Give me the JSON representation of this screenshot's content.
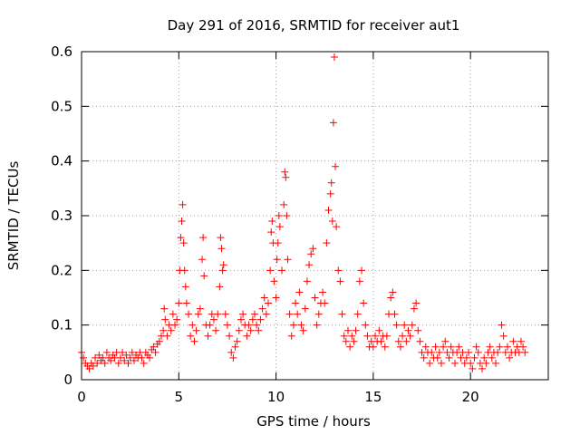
{
  "chart_data": {
    "type": "scatter",
    "title": "Day 291 of 2016, SRMTID for receiver aut1",
    "xlabel": "GPS time / hours",
    "ylabel": "SRMTID / TECUs",
    "xlim": [
      0,
      24
    ],
    "ylim": [
      0,
      0.6
    ],
    "xticks": [
      0,
      5,
      10,
      15,
      20
    ],
    "yticks": [
      0,
      0.1,
      0.2,
      0.3,
      0.4,
      0.5,
      0.6
    ],
    "xtick_labels": [
      "0",
      "5",
      "10",
      "15",
      "20"
    ],
    "ytick_labels": [
      "0",
      "0.1",
      "0.2",
      "0.3",
      "0.4",
      "0.5",
      "0.6"
    ],
    "grid": true,
    "marker": "+",
    "marker_color": "#ff0000",
    "series": [
      {
        "name": "aut1",
        "points": [
          [
            0.0,
            0.05
          ],
          [
            0.1,
            0.04
          ],
          [
            0.2,
            0.03
          ],
          [
            0.3,
            0.025
          ],
          [
            0.4,
            0.02
          ],
          [
            0.5,
            0.03
          ],
          [
            0.6,
            0.025
          ],
          [
            0.7,
            0.04
          ],
          [
            0.8,
            0.03
          ],
          [
            0.9,
            0.045
          ],
          [
            1.0,
            0.035
          ],
          [
            1.1,
            0.04
          ],
          [
            1.2,
            0.03
          ],
          [
            1.3,
            0.05
          ],
          [
            1.4,
            0.04
          ],
          [
            1.5,
            0.035
          ],
          [
            1.6,
            0.045
          ],
          [
            1.7,
            0.04
          ],
          [
            1.8,
            0.05
          ],
          [
            1.9,
            0.03
          ],
          [
            2.0,
            0.04
          ],
          [
            2.1,
            0.05
          ],
          [
            2.2,
            0.035
          ],
          [
            2.3,
            0.045
          ],
          [
            2.4,
            0.03
          ],
          [
            2.5,
            0.04
          ],
          [
            2.6,
            0.05
          ],
          [
            2.7,
            0.035
          ],
          [
            2.8,
            0.045
          ],
          [
            2.9,
            0.04
          ],
          [
            3.0,
            0.05
          ],
          [
            3.1,
            0.04
          ],
          [
            3.2,
            0.03
          ],
          [
            3.3,
            0.05
          ],
          [
            3.4,
            0.045
          ],
          [
            3.5,
            0.04
          ],
          [
            3.6,
            0.055
          ],
          [
            3.7,
            0.06
          ],
          [
            3.8,
            0.05
          ],
          [
            3.9,
            0.065
          ],
          [
            4.0,
            0.07
          ],
          [
            4.1,
            0.08
          ],
          [
            4.2,
            0.09
          ],
          [
            4.25,
            0.13
          ],
          [
            4.3,
            0.11
          ],
          [
            4.4,
            0.08
          ],
          [
            4.5,
            0.1
          ],
          [
            4.6,
            0.09
          ],
          [
            4.7,
            0.12
          ],
          [
            4.8,
            0.1
          ],
          [
            4.9,
            0.11
          ],
          [
            5.0,
            0.14
          ],
          [
            5.05,
            0.2
          ],
          [
            5.1,
            0.26
          ],
          [
            5.15,
            0.29
          ],
          [
            5.2,
            0.32
          ],
          [
            5.25,
            0.25
          ],
          [
            5.3,
            0.2
          ],
          [
            5.35,
            0.17
          ],
          [
            5.4,
            0.14
          ],
          [
            5.5,
            0.12
          ],
          [
            5.6,
            0.08
          ],
          [
            5.7,
            0.1
          ],
          [
            5.8,
            0.07
          ],
          [
            5.9,
            0.09
          ],
          [
            6.0,
            0.12
          ],
          [
            6.1,
            0.13
          ],
          [
            6.2,
            0.22
          ],
          [
            6.25,
            0.26
          ],
          [
            6.3,
            0.19
          ],
          [
            6.4,
            0.1
          ],
          [
            6.5,
            0.08
          ],
          [
            6.6,
            0.1
          ],
          [
            6.7,
            0.12
          ],
          [
            6.8,
            0.11
          ],
          [
            6.9,
            0.09
          ],
          [
            7.0,
            0.12
          ],
          [
            7.1,
            0.17
          ],
          [
            7.15,
            0.26
          ],
          [
            7.2,
            0.24
          ],
          [
            7.25,
            0.2
          ],
          [
            7.3,
            0.21
          ],
          [
            7.4,
            0.12
          ],
          [
            7.5,
            0.1
          ],
          [
            7.6,
            0.08
          ],
          [
            7.7,
            0.05
          ],
          [
            7.8,
            0.04
          ],
          [
            7.9,
            0.06
          ],
          [
            8.0,
            0.07
          ],
          [
            8.1,
            0.09
          ],
          [
            8.2,
            0.11
          ],
          [
            8.3,
            0.12
          ],
          [
            8.4,
            0.1
          ],
          [
            8.5,
            0.08
          ],
          [
            8.6,
            0.1
          ],
          [
            8.7,
            0.09
          ],
          [
            8.8,
            0.11
          ],
          [
            8.9,
            0.12
          ],
          [
            9.0,
            0.1
          ],
          [
            9.1,
            0.09
          ],
          [
            9.2,
            0.11
          ],
          [
            9.3,
            0.13
          ],
          [
            9.4,
            0.15
          ],
          [
            9.5,
            0.12
          ],
          [
            9.6,
            0.14
          ],
          [
            9.7,
            0.2
          ],
          [
            9.75,
            0.27
          ],
          [
            9.8,
            0.29
          ],
          [
            9.85,
            0.25
          ],
          [
            9.9,
            0.18
          ],
          [
            10.0,
            0.15
          ],
          [
            10.05,
            0.22
          ],
          [
            10.1,
            0.25
          ],
          [
            10.15,
            0.3
          ],
          [
            10.2,
            0.28
          ],
          [
            10.3,
            0.2
          ],
          [
            10.4,
            0.32
          ],
          [
            10.45,
            0.38
          ],
          [
            10.5,
            0.37
          ],
          [
            10.55,
            0.3
          ],
          [
            10.6,
            0.22
          ],
          [
            10.7,
            0.12
          ],
          [
            10.8,
            0.08
          ],
          [
            10.9,
            0.1
          ],
          [
            11.0,
            0.14
          ],
          [
            11.1,
            0.12
          ],
          [
            11.2,
            0.16
          ],
          [
            11.3,
            0.1
          ],
          [
            11.4,
            0.09
          ],
          [
            11.5,
            0.13
          ],
          [
            11.6,
            0.18
          ],
          [
            11.7,
            0.21
          ],
          [
            11.8,
            0.23
          ],
          [
            11.9,
            0.24
          ],
          [
            12.0,
            0.15
          ],
          [
            12.1,
            0.1
          ],
          [
            12.2,
            0.12
          ],
          [
            12.3,
            0.14
          ],
          [
            12.4,
            0.16
          ],
          [
            12.5,
            0.14
          ],
          [
            12.6,
            0.25
          ],
          [
            12.7,
            0.31
          ],
          [
            12.8,
            0.34
          ],
          [
            12.85,
            0.36
          ],
          [
            12.9,
            0.29
          ],
          [
            12.95,
            0.47
          ],
          [
            13.0,
            0.59
          ],
          [
            13.05,
            0.39
          ],
          [
            13.1,
            0.28
          ],
          [
            13.2,
            0.2
          ],
          [
            13.3,
            0.18
          ],
          [
            13.4,
            0.12
          ],
          [
            13.5,
            0.08
          ],
          [
            13.6,
            0.07
          ],
          [
            13.7,
            0.09
          ],
          [
            13.8,
            0.06
          ],
          [
            13.9,
            0.08
          ],
          [
            14.0,
            0.07
          ],
          [
            14.1,
            0.09
          ],
          [
            14.2,
            0.12
          ],
          [
            14.3,
            0.18
          ],
          [
            14.4,
            0.2
          ],
          [
            14.5,
            0.14
          ],
          [
            14.6,
            0.1
          ],
          [
            14.7,
            0.08
          ],
          [
            14.8,
            0.06
          ],
          [
            14.9,
            0.07
          ],
          [
            15.0,
            0.06
          ],
          [
            15.1,
            0.08
          ],
          [
            15.2,
            0.07
          ],
          [
            15.3,
            0.09
          ],
          [
            15.4,
            0.07
          ],
          [
            15.5,
            0.08
          ],
          [
            15.6,
            0.06
          ],
          [
            15.7,
            0.08
          ],
          [
            15.8,
            0.12
          ],
          [
            15.9,
            0.15
          ],
          [
            16.0,
            0.16
          ],
          [
            16.1,
            0.12
          ],
          [
            16.2,
            0.1
          ],
          [
            16.3,
            0.07
          ],
          [
            16.4,
            0.06
          ],
          [
            16.5,
            0.08
          ],
          [
            16.6,
            0.1
          ],
          [
            16.7,
            0.07
          ],
          [
            16.8,
            0.09
          ],
          [
            16.9,
            0.08
          ],
          [
            17.0,
            0.1
          ],
          [
            17.1,
            0.13
          ],
          [
            17.2,
            0.14
          ],
          [
            17.3,
            0.09
          ],
          [
            17.4,
            0.07
          ],
          [
            17.5,
            0.05
          ],
          [
            17.6,
            0.04
          ],
          [
            17.7,
            0.06
          ],
          [
            17.8,
            0.05
          ],
          [
            17.9,
            0.03
          ],
          [
            18.0,
            0.05
          ],
          [
            18.1,
            0.04
          ],
          [
            18.2,
            0.06
          ],
          [
            18.3,
            0.04
          ],
          [
            18.4,
            0.05
          ],
          [
            18.5,
            0.03
          ],
          [
            18.6,
            0.06
          ],
          [
            18.7,
            0.07
          ],
          [
            18.8,
            0.05
          ],
          [
            18.9,
            0.04
          ],
          [
            19.0,
            0.06
          ],
          [
            19.1,
            0.05
          ],
          [
            19.2,
            0.03
          ],
          [
            19.3,
            0.05
          ],
          [
            19.4,
            0.06
          ],
          [
            19.5,
            0.04
          ],
          [
            19.6,
            0.05
          ],
          [
            19.7,
            0.03
          ],
          [
            19.8,
            0.04
          ],
          [
            19.9,
            0.05
          ],
          [
            20.0,
            0.03
          ],
          [
            20.1,
            0.02
          ],
          [
            20.2,
            0.04
          ],
          [
            20.3,
            0.06
          ],
          [
            20.4,
            0.05
          ],
          [
            20.5,
            0.03
          ],
          [
            20.6,
            0.02
          ],
          [
            20.7,
            0.04
          ],
          [
            20.8,
            0.03
          ],
          [
            20.9,
            0.05
          ],
          [
            21.0,
            0.06
          ],
          [
            21.1,
            0.04
          ],
          [
            21.2,
            0.05
          ],
          [
            21.3,
            0.03
          ],
          [
            21.4,
            0.05
          ],
          [
            21.5,
            0.06
          ],
          [
            21.6,
            0.1
          ],
          [
            21.7,
            0.08
          ],
          [
            21.8,
            0.05
          ],
          [
            21.9,
            0.06
          ],
          [
            22.0,
            0.04
          ],
          [
            22.1,
            0.05
          ],
          [
            22.2,
            0.07
          ],
          [
            22.3,
            0.05
          ],
          [
            22.4,
            0.06
          ],
          [
            22.5,
            0.05
          ],
          [
            22.6,
            0.07
          ],
          [
            22.7,
            0.06
          ],
          [
            22.8,
            0.05
          ]
        ]
      }
    ]
  }
}
